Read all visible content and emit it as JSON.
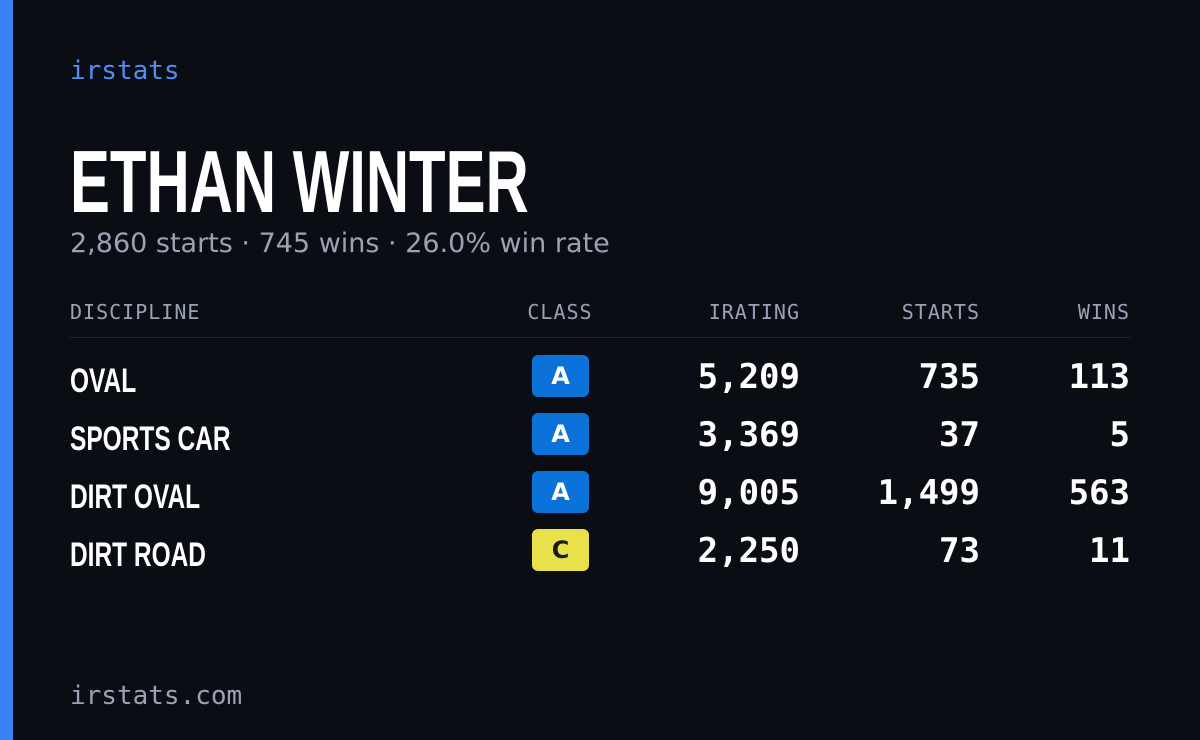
{
  "brand": "irstats",
  "header": {
    "title": "ETHAN WINTER",
    "subtitle": "2,860 starts · 745 wins · 26.0% win rate"
  },
  "table": {
    "headers": [
      "DISCIPLINE",
      "CLASS",
      "IRATING",
      "STARTS",
      "WINS"
    ],
    "rows": [
      {
        "discipline": "OVAL",
        "class": "A",
        "class_color": "#0b72d9",
        "class_text_color": "#ffffff",
        "irating": "5,209",
        "starts": "735",
        "wins": "113"
      },
      {
        "discipline": "SPORTS CAR",
        "class": "A",
        "class_color": "#0b72d9",
        "class_text_color": "#ffffff",
        "irating": "3,369",
        "starts": "37",
        "wins": "5"
      },
      {
        "discipline": "DIRT OVAL",
        "class": "A",
        "class_color": "#0b72d9",
        "class_text_color": "#ffffff",
        "irating": "9,005",
        "starts": "1,499",
        "wins": "563"
      },
      {
        "discipline": "DIRT ROAD",
        "class": "C",
        "class_color": "#e9e14b",
        "class_text_color": "#1a1a1a",
        "irating": "2,250",
        "starts": "73",
        "wins": "11"
      }
    ]
  },
  "footer": "irstats.com"
}
